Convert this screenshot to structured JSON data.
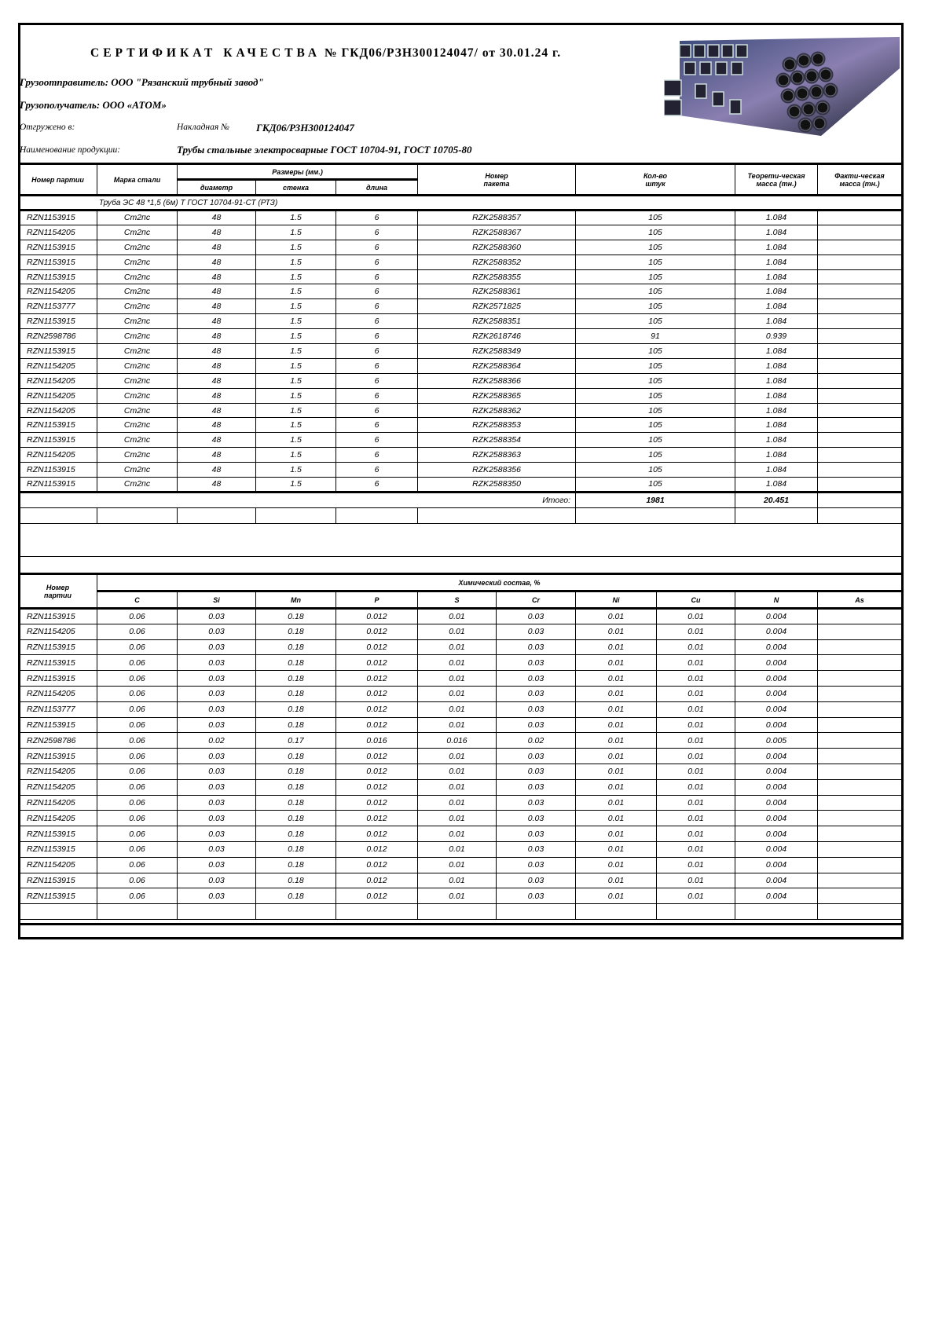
{
  "header": {
    "title_prefix": "СЕРТИФИКАТ КАЧЕСТВА",
    "title_rest": "№ ГКД06/РЗН300124047/  от 30.01.24 г.",
    "shipper": "Грузоотправитель: ООО \"Рязанский трубный завод\"",
    "consignee": "Грузополучатель: ООО «АТОМ»",
    "shipped_label": "Отгружено в:",
    "invoice_label": "Накладная №",
    "invoice_number": "ГКД06/РЗН300124047",
    "product_label": "Наименование продукции:",
    "product_name": "Трубы стальные электросварные ГОСТ 10704-91, ГОСТ 10705-80",
    "image": "steel-pipes-picture"
  },
  "table1": {
    "headers": {
      "batch": "Номер партии",
      "steel": "Марка стали",
      "sizes": "Размеры (мм.)",
      "diameter": "диаметр",
      "wall": "стенка",
      "length": "длина",
      "package": "Номер пакета",
      "qty": "Кол-во штук",
      "theor": "Теорети-ческая масса (тн.)",
      "actual": "Факти-ческая масса (тн.)"
    },
    "group_label": "Труба ЭС 48 *1,5 (6м) Т ГОСТ 10704-91-СТ (РТЗ)",
    "rows": [
      [
        "RZN1153915",
        "Ст2пс",
        "48",
        "1.5",
        "6",
        "RZK2588357",
        "105",
        "1.084",
        ""
      ],
      [
        "RZN1154205",
        "Ст2пс",
        "48",
        "1.5",
        "6",
        "RZK2588367",
        "105",
        "1.084",
        ""
      ],
      [
        "RZN1153915",
        "Ст2пс",
        "48",
        "1.5",
        "6",
        "RZK2588360",
        "105",
        "1.084",
        ""
      ],
      [
        "RZN1153915",
        "Ст2пс",
        "48",
        "1.5",
        "6",
        "RZK2588352",
        "105",
        "1.084",
        ""
      ],
      [
        "RZN1153915",
        "Ст2пс",
        "48",
        "1.5",
        "6",
        "RZK2588355",
        "105",
        "1.084",
        ""
      ],
      [
        "RZN1154205",
        "Ст2пс",
        "48",
        "1.5",
        "6",
        "RZK2588361",
        "105",
        "1.084",
        ""
      ],
      [
        "RZN1153777",
        "Ст2пс",
        "48",
        "1.5",
        "6",
        "RZK2571825",
        "105",
        "1.084",
        ""
      ],
      [
        "RZN1153915",
        "Ст2пс",
        "48",
        "1.5",
        "6",
        "RZK2588351",
        "105",
        "1.084",
        ""
      ],
      [
        "RZN2598786",
        "Ст2пс",
        "48",
        "1.5",
        "6",
        "RZK2618746",
        "91",
        "0.939",
        ""
      ],
      [
        "RZN1153915",
        "Ст2пс",
        "48",
        "1.5",
        "6",
        "RZK2588349",
        "105",
        "1.084",
        ""
      ],
      [
        "RZN1154205",
        "Ст2пс",
        "48",
        "1.5",
        "6",
        "RZK2588364",
        "105",
        "1.084",
        ""
      ],
      [
        "RZN1154205",
        "Ст2пс",
        "48",
        "1.5",
        "6",
        "RZK2588366",
        "105",
        "1.084",
        ""
      ],
      [
        "RZN1154205",
        "Ст2пс",
        "48",
        "1.5",
        "6",
        "RZK2588365",
        "105",
        "1.084",
        ""
      ],
      [
        "RZN1154205",
        "Ст2пс",
        "48",
        "1.5",
        "6",
        "RZK2588362",
        "105",
        "1.084",
        ""
      ],
      [
        "RZN1153915",
        "Ст2пс",
        "48",
        "1.5",
        "6",
        "RZK2588353",
        "105",
        "1.084",
        ""
      ],
      [
        "RZN1153915",
        "Ст2пс",
        "48",
        "1.5",
        "6",
        "RZK2588354",
        "105",
        "1.084",
        ""
      ],
      [
        "RZN1154205",
        "Ст2пс",
        "48",
        "1.5",
        "6",
        "RZK2588363",
        "105",
        "1.084",
        ""
      ],
      [
        "RZN1153915",
        "Ст2пс",
        "48",
        "1.5",
        "6",
        "RZK2588356",
        "105",
        "1.084",
        ""
      ],
      [
        "RZN1153915",
        "Ст2пс",
        "48",
        "1.5",
        "6",
        "RZK2588350",
        "105",
        "1.084",
        ""
      ]
    ],
    "total_label": "Итого:",
    "total_qty": "1981",
    "total_mass": "20.451"
  },
  "table2": {
    "batch_header": "Номер партии",
    "title": "Химический состав, %",
    "elements": [
      "C",
      "Si",
      "Mn",
      "P",
      "S",
      "Cr",
      "Ni",
      "Cu",
      "N",
      "As"
    ],
    "rows": [
      [
        "RZN1153915",
        "0.06",
        "0.03",
        "0.18",
        "0.012",
        "0.01",
        "0.03",
        "0.01",
        "0.01",
        "0.004",
        ""
      ],
      [
        "RZN1154205",
        "0.06",
        "0.03",
        "0.18",
        "0.012",
        "0.01",
        "0.03",
        "0.01",
        "0.01",
        "0.004",
        ""
      ],
      [
        "RZN1153915",
        "0.06",
        "0.03",
        "0.18",
        "0.012",
        "0.01",
        "0.03",
        "0.01",
        "0.01",
        "0.004",
        ""
      ],
      [
        "RZN1153915",
        "0.06",
        "0.03",
        "0.18",
        "0.012",
        "0.01",
        "0.03",
        "0.01",
        "0.01",
        "0.004",
        ""
      ],
      [
        "RZN1153915",
        "0.06",
        "0.03",
        "0.18",
        "0.012",
        "0.01",
        "0.03",
        "0.01",
        "0.01",
        "0.004",
        ""
      ],
      [
        "RZN1154205",
        "0.06",
        "0.03",
        "0.18",
        "0.012",
        "0.01",
        "0.03",
        "0.01",
        "0.01",
        "0.004",
        ""
      ],
      [
        "RZN1153777",
        "0.06",
        "0.03",
        "0.18",
        "0.012",
        "0.01",
        "0.03",
        "0.01",
        "0.01",
        "0.004",
        ""
      ],
      [
        "RZN1153915",
        "0.06",
        "0.03",
        "0.18",
        "0.012",
        "0.01",
        "0.03",
        "0.01",
        "0.01",
        "0.004",
        ""
      ],
      [
        "RZN2598786",
        "0.06",
        "0.02",
        "0.17",
        "0.016",
        "0.016",
        "0.02",
        "0.01",
        "0.01",
        "0.005",
        ""
      ],
      [
        "RZN1153915",
        "0.06",
        "0.03",
        "0.18",
        "0.012",
        "0.01",
        "0.03",
        "0.01",
        "0.01",
        "0.004",
        ""
      ],
      [
        "RZN1154205",
        "0.06",
        "0.03",
        "0.18",
        "0.012",
        "0.01",
        "0.03",
        "0.01",
        "0.01",
        "0.004",
        ""
      ],
      [
        "RZN1154205",
        "0.06",
        "0.03",
        "0.18",
        "0.012",
        "0.01",
        "0.03",
        "0.01",
        "0.01",
        "0.004",
        ""
      ],
      [
        "RZN1154205",
        "0.06",
        "0.03",
        "0.18",
        "0.012",
        "0.01",
        "0.03",
        "0.01",
        "0.01",
        "0.004",
        ""
      ],
      [
        "RZN1154205",
        "0.06",
        "0.03",
        "0.18",
        "0.012",
        "0.01",
        "0.03",
        "0.01",
        "0.01",
        "0.004",
        ""
      ],
      [
        "RZN1153915",
        "0.06",
        "0.03",
        "0.18",
        "0.012",
        "0.01",
        "0.03",
        "0.01",
        "0.01",
        "0.004",
        ""
      ],
      [
        "RZN1153915",
        "0.06",
        "0.03",
        "0.18",
        "0.012",
        "0.01",
        "0.03",
        "0.01",
        "0.01",
        "0.004",
        ""
      ],
      [
        "RZN1154205",
        "0.06",
        "0.03",
        "0.18",
        "0.012",
        "0.01",
        "0.03",
        "0.01",
        "0.01",
        "0.004",
        ""
      ],
      [
        "RZN1153915",
        "0.06",
        "0.03",
        "0.18",
        "0.012",
        "0.01",
        "0.03",
        "0.01",
        "0.01",
        "0.004",
        ""
      ],
      [
        "RZN1153915",
        "0.06",
        "0.03",
        "0.18",
        "0.012",
        "0.01",
        "0.03",
        "0.01",
        "0.01",
        "0.004",
        ""
      ]
    ]
  }
}
